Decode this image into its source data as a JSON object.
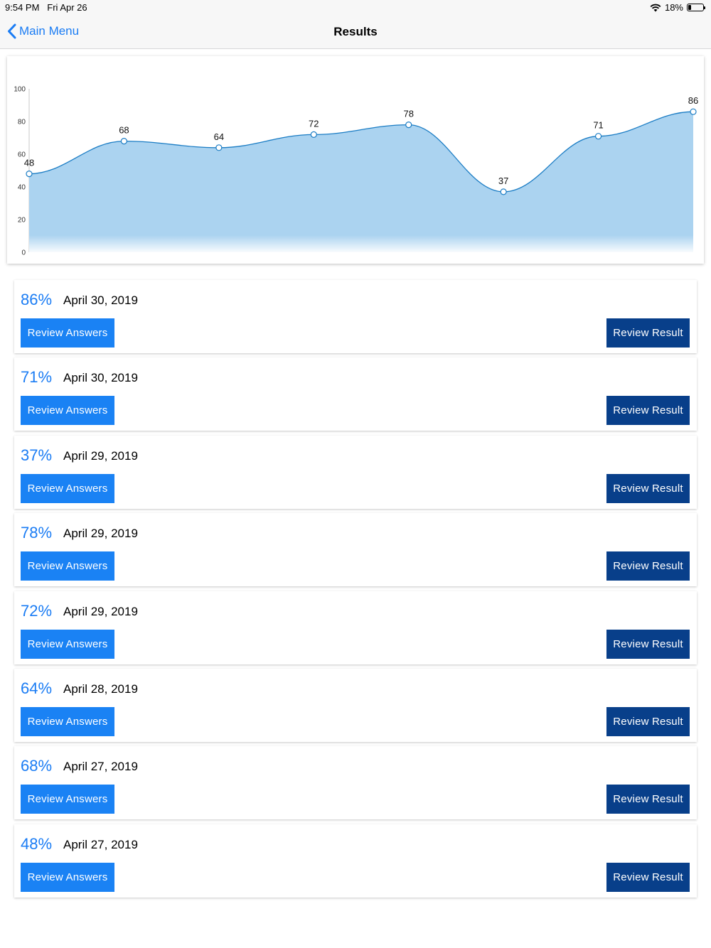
{
  "status_bar": {
    "time": "9:54 PM",
    "date": "Fri Apr 26",
    "battery": "18%",
    "battery_level": 0.18
  },
  "nav": {
    "back_label": "Main Menu",
    "title": "Results"
  },
  "chart_data": {
    "type": "area",
    "title": "",
    "xlabel": "",
    "ylabel": "",
    "ylim": [
      0,
      100
    ],
    "yticks": [
      0,
      20,
      40,
      60,
      80,
      100
    ],
    "values": [
      48,
      68,
      64,
      72,
      78,
      37,
      71,
      86
    ],
    "grid": false,
    "legend": "none",
    "colors": {
      "line": "#1a7cc4",
      "fill": "#abd3f0",
      "point_fill": "#ffffff"
    }
  },
  "results": [
    {
      "percent": "86%",
      "date": "April 30, 2019"
    },
    {
      "percent": "71%",
      "date": "April 30, 2019"
    },
    {
      "percent": "37%",
      "date": "April 29, 2019"
    },
    {
      "percent": "78%",
      "date": "April 29, 2019"
    },
    {
      "percent": "72%",
      "date": "April 29, 2019"
    },
    {
      "percent": "64%",
      "date": "April 28, 2019"
    },
    {
      "percent": "68%",
      "date": "April 27, 2019"
    },
    {
      "percent": "48%",
      "date": "April 27, 2019"
    }
  ],
  "buttons": {
    "review_answers": "Review Answers",
    "review_result": "Review Result"
  },
  "colors": {
    "accent": "#1a82f4",
    "dark_button": "#083f8a"
  }
}
